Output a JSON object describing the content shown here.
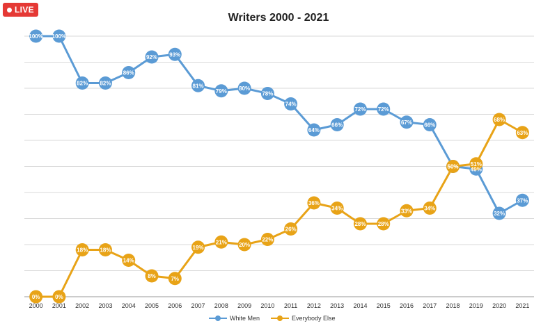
{
  "badge": {
    "label": "LIVE",
    "color": "#e53935"
  },
  "chart_data": {
    "type": "line",
    "title": "Writers 2000 - 2021",
    "xlabel": "",
    "ylabel": "",
    "x": [
      "2000",
      "2001",
      "2002",
      "2003",
      "2004",
      "2005",
      "2006",
      "2007",
      "2008",
      "2009",
      "2010",
      "2011",
      "2012",
      "2013",
      "2014",
      "2015",
      "2016",
      "2017",
      "2018",
      "2019",
      "2020",
      "2021"
    ],
    "ylim": [
      0,
      100
    ],
    "grid": true,
    "legend_placement": "bottom",
    "series": [
      {
        "name": "White Men",
        "color": "#5b9bd5",
        "values": [
          100,
          100,
          82,
          82,
          86,
          92,
          93,
          81,
          79,
          80,
          78,
          74,
          64,
          66,
          72,
          72,
          67,
          66,
          50,
          49,
          32,
          37
        ],
        "labels": [
          "100%",
          "100%",
          "82%",
          "82%",
          "86%",
          "92%",
          "93%",
          "81%",
          "79%",
          "80%",
          "78%",
          "74%",
          "64%",
          "66%",
          "72%",
          "72%",
          "67%",
          "66%",
          "50%",
          "49%",
          "32%",
          "37%"
        ]
      },
      {
        "name": "Everybody Else",
        "color": "#e8a317",
        "values": [
          0,
          0,
          18,
          18,
          14,
          8,
          7,
          19,
          21,
          20,
          22,
          26,
          36,
          34,
          28,
          28,
          33,
          34,
          50,
          51,
          68,
          63
        ],
        "labels": [
          "0%",
          "0%",
          "18%",
          "18%",
          "14%",
          "8%",
          "7%",
          "19%",
          "21%",
          "20%",
          "22%",
          "26%",
          "36%",
          "34%",
          "28%",
          "28%",
          "33%",
          "34%",
          "50%",
          "51%",
          "68%",
          "63%"
        ]
      }
    ]
  }
}
